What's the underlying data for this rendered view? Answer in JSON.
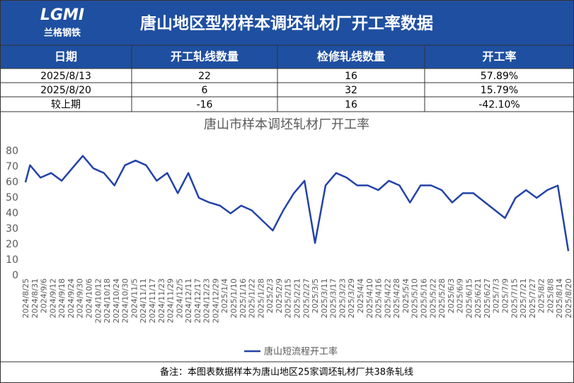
{
  "header": {
    "logo": "LGMI",
    "logo_sub": "兰格钢铁",
    "title": "唐山地区型材样本调坯轧材厂开工率数据"
  },
  "table": {
    "columns": [
      "日期",
      "开工轧线数量",
      "检修轧线数量",
      "开工率"
    ],
    "rows": [
      [
        "2025/8/13",
        "22",
        "16",
        "57.89%"
      ],
      [
        "2025/8/20",
        "6",
        "32",
        "15.79%"
      ],
      [
        "较上期",
        "-16",
        "16",
        "-42.10%"
      ]
    ]
  },
  "chart_data": {
    "type": "line",
    "title": "唐山市样本调坯轧材厂开工率",
    "x": [
      "2024/8/25",
      "2024/8/28",
      "2024/9/4",
      "2024/9/11",
      "2024/9/18",
      "2024/9/25",
      "2024/10/2",
      "2024/10/9",
      "2024/10/16",
      "2024/10/23",
      "2024/10/30",
      "2024/11/6",
      "2024/11/13",
      "2024/11/20",
      "2024/11/27",
      "2024/12/4",
      "2024/12/11",
      "2024/12/18",
      "2024/12/25",
      "2025/1/1",
      "2025/1/8",
      "2025/1/15",
      "2025/1/22",
      "2025/2/5",
      "2025/2/12",
      "2025/2/19",
      "2025/2/26",
      "2025/3/5",
      "2025/3/12",
      "2025/3/19",
      "2025/3/26",
      "2025/4/2",
      "2025/4/9",
      "2025/4/16",
      "2025/4/23",
      "2025/4/30",
      "2025/5/7",
      "2025/5/14",
      "2025/5/21",
      "2025/5/28",
      "2025/6/4",
      "2025/6/11",
      "2025/6/18",
      "2025/7/9",
      "2025/7/16",
      "2025/7/23",
      "2025/7/30",
      "2025/8/6",
      "2025/8/13",
      "2025/8/20"
    ],
    "series": [
      {
        "name": "唐山短流程开工率",
        "color": "#2343a8",
        "values": [
          60,
          71,
          63,
          66,
          61,
          69,
          77,
          69,
          66,
          58,
          71,
          74,
          71,
          61,
          66,
          53,
          66,
          50,
          47,
          45,
          40,
          45,
          42,
          29,
          42,
          53,
          61,
          21,
          58,
          66,
          63,
          58,
          58,
          55,
          61,
          58,
          47,
          58,
          58,
          55,
          47,
          53,
          53,
          37,
          50,
          55,
          50,
          55,
          57.89,
          15.79
        ]
      }
    ],
    "xlim": [
      "2024/8/25",
      "2025/8/20"
    ],
    "xticks": [
      "2024/8/25",
      "2024/8/31",
      "2024/9/6",
      "2024/9/12",
      "2024/9/18",
      "2024/9/24",
      "2024/9/30",
      "2024/10/6",
      "2024/10/12",
      "2024/10/18",
      "2024/10/24",
      "2024/10/30",
      "2024/11/5",
      "2024/11/11",
      "2024/11/17",
      "2024/11/23",
      "2024/11/29",
      "2024/12/5",
      "2024/12/11",
      "2024/12/17",
      "2024/12/23",
      "2024/12/29",
      "2025/1/4",
      "2025/1/10",
      "2025/1/16",
      "2025/1/22",
      "2025/1/28",
      "2025/2/3",
      "2025/2/9",
      "2025/2/15",
      "2025/2/21",
      "2025/2/27",
      "2025/3/5",
      "2025/3/11",
      "2025/3/17",
      "2025/3/23",
      "2025/3/29",
      "2025/4/4",
      "2025/4/10",
      "2025/4/16",
      "2025/4/22",
      "2025/4/28",
      "2025/5/4",
      "2025/5/10",
      "2025/5/16",
      "2025/5/22",
      "2025/5/28",
      "2025/6/3",
      "2025/6/9",
      "2025/6/15",
      "2025/6/21",
      "2025/6/27",
      "2025/7/3",
      "2025/7/9",
      "2025/7/15",
      "2025/7/21",
      "2025/7/27",
      "2025/8/2",
      "2025/8/8",
      "2025/8/14",
      "2025/8/20"
    ],
    "ylim": [
      0,
      80
    ],
    "yticks": [
      0,
      10,
      20,
      30,
      40,
      50,
      60,
      70,
      80
    ],
    "grid": false,
    "legend": "bottom"
  },
  "note": "备注：本图表数据样本为唐山地区25家调坯轧材厂共38条轧线"
}
